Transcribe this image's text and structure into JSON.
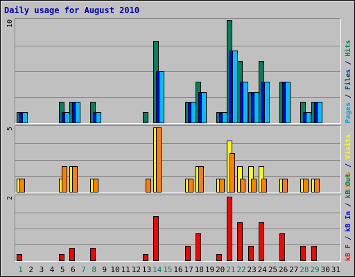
{
  "chart_data": {
    "type": "bar",
    "title": "Daily usage for August 2010",
    "categories": [
      "1",
      "2",
      "3",
      "4",
      "5",
      "6",
      "7",
      "8",
      "9",
      "10",
      "11",
      "12",
      "13",
      "14",
      "15",
      "16",
      "17",
      "18",
      "19",
      "20",
      "21",
      "22",
      "23",
      "24",
      "25",
      "26",
      "27",
      "28",
      "29",
      "30",
      "31"
    ],
    "weekend_days": [
      1,
      7,
      8,
      14,
      15,
      21,
      22,
      28,
      29
    ],
    "panels": [
      {
        "id": "hits_files_pages",
        "ylim": [
          0,
          10
        ],
        "y_tick_label": "10",
        "side_label": [
          {
            "text": "Pages",
            "color": "#00a0e0"
          },
          {
            "text": " / ",
            "color": "#00008b"
          },
          {
            "text": "Files",
            "color": "#00508b"
          },
          {
            "text": " / ",
            "color": "#00008b"
          },
          {
            "text": "Hits",
            "color": "#00805c"
          }
        ],
        "series": [
          {
            "name": "Hits",
            "color": "#00805c",
            "values": [
              1,
              0,
              0,
              0,
              2,
              2,
              0,
              2,
              0,
              0,
              0,
              0,
              1,
              8,
              0,
              0,
              2,
              4,
              0,
              1,
              10,
              6,
              3,
              6,
              0,
              4,
              0,
              2,
              2,
              0,
              0
            ]
          },
          {
            "name": "Files",
            "color": "#0000ff",
            "values": [
              1,
              0,
              0,
              0,
              1,
              2,
              0,
              1,
              0,
              0,
              0,
              0,
              0,
              5,
              0,
              0,
              2,
              3,
              0,
              1,
              7,
              4,
              3,
              4,
              0,
              4,
              0,
              1,
              2,
              0,
              0
            ]
          },
          {
            "name": "Pages",
            "color": "#00bfff",
            "values": [
              1,
              0,
              0,
              0,
              1,
              2,
              0,
              1,
              0,
              0,
              0,
              0,
              0,
              5,
              0,
              0,
              2,
              3,
              0,
              1,
              7,
              4,
              3,
              4,
              0,
              4,
              0,
              1,
              2,
              0,
              0
            ]
          }
        ]
      },
      {
        "id": "visits_sites",
        "ylim": [
          0,
          5
        ],
        "y_tick_label": "5",
        "side_label": [
          {
            "text": "Sites",
            "color": "#ff8000"
          },
          {
            "text": " / ",
            "color": "#00008b"
          },
          {
            "text": "Visits",
            "color": "#ffff00"
          }
        ],
        "series": [
          {
            "name": "Visits",
            "color": "#ffff00",
            "values": [
              1,
              0,
              0,
              0,
              1,
              2,
              0,
              1,
              0,
              0,
              0,
              0,
              0,
              5,
              0,
              0,
              1,
              2,
              0,
              1,
              4,
              2,
              2,
              2,
              0,
              1,
              0,
              1,
              1,
              0,
              0
            ]
          },
          {
            "name": "Sites",
            "color": "#ff8000",
            "values": [
              1,
              0,
              0,
              0,
              2,
              2,
              0,
              1,
              0,
              0,
              0,
              0,
              1,
              5,
              0,
              0,
              1,
              2,
              0,
              1,
              3,
              1,
              1,
              1,
              0,
              1,
              0,
              1,
              1,
              0,
              0
            ]
          }
        ]
      },
      {
        "id": "kbytes",
        "ylim": [
          0,
          2
        ],
        "y_tick_label": "2",
        "side_label": [
          {
            "text": "kB F",
            "color": "#ff0000"
          },
          {
            "text": " / ",
            "color": "#00008b"
          },
          {
            "text": "kB In",
            "color": "#0000ff"
          },
          {
            "text": " / ",
            "color": "#00008b"
          },
          {
            "text": "kB Out",
            "color": "#00805c"
          }
        ],
        "series": [
          {
            "name": "kB F",
            "color": "#ff0000",
            "values": [
              0.2,
              0,
              0,
              0,
              0.2,
              0.4,
              0,
              0.4,
              0,
              0,
              0,
              0,
              0.2,
              1.4,
              0,
              0,
              0.45,
              0.85,
              0,
              0.2,
              2.0,
              1.2,
              0.45,
              1.2,
              0,
              0.85,
              0,
              0.45,
              0.45,
              0,
              0
            ]
          }
        ]
      }
    ]
  }
}
